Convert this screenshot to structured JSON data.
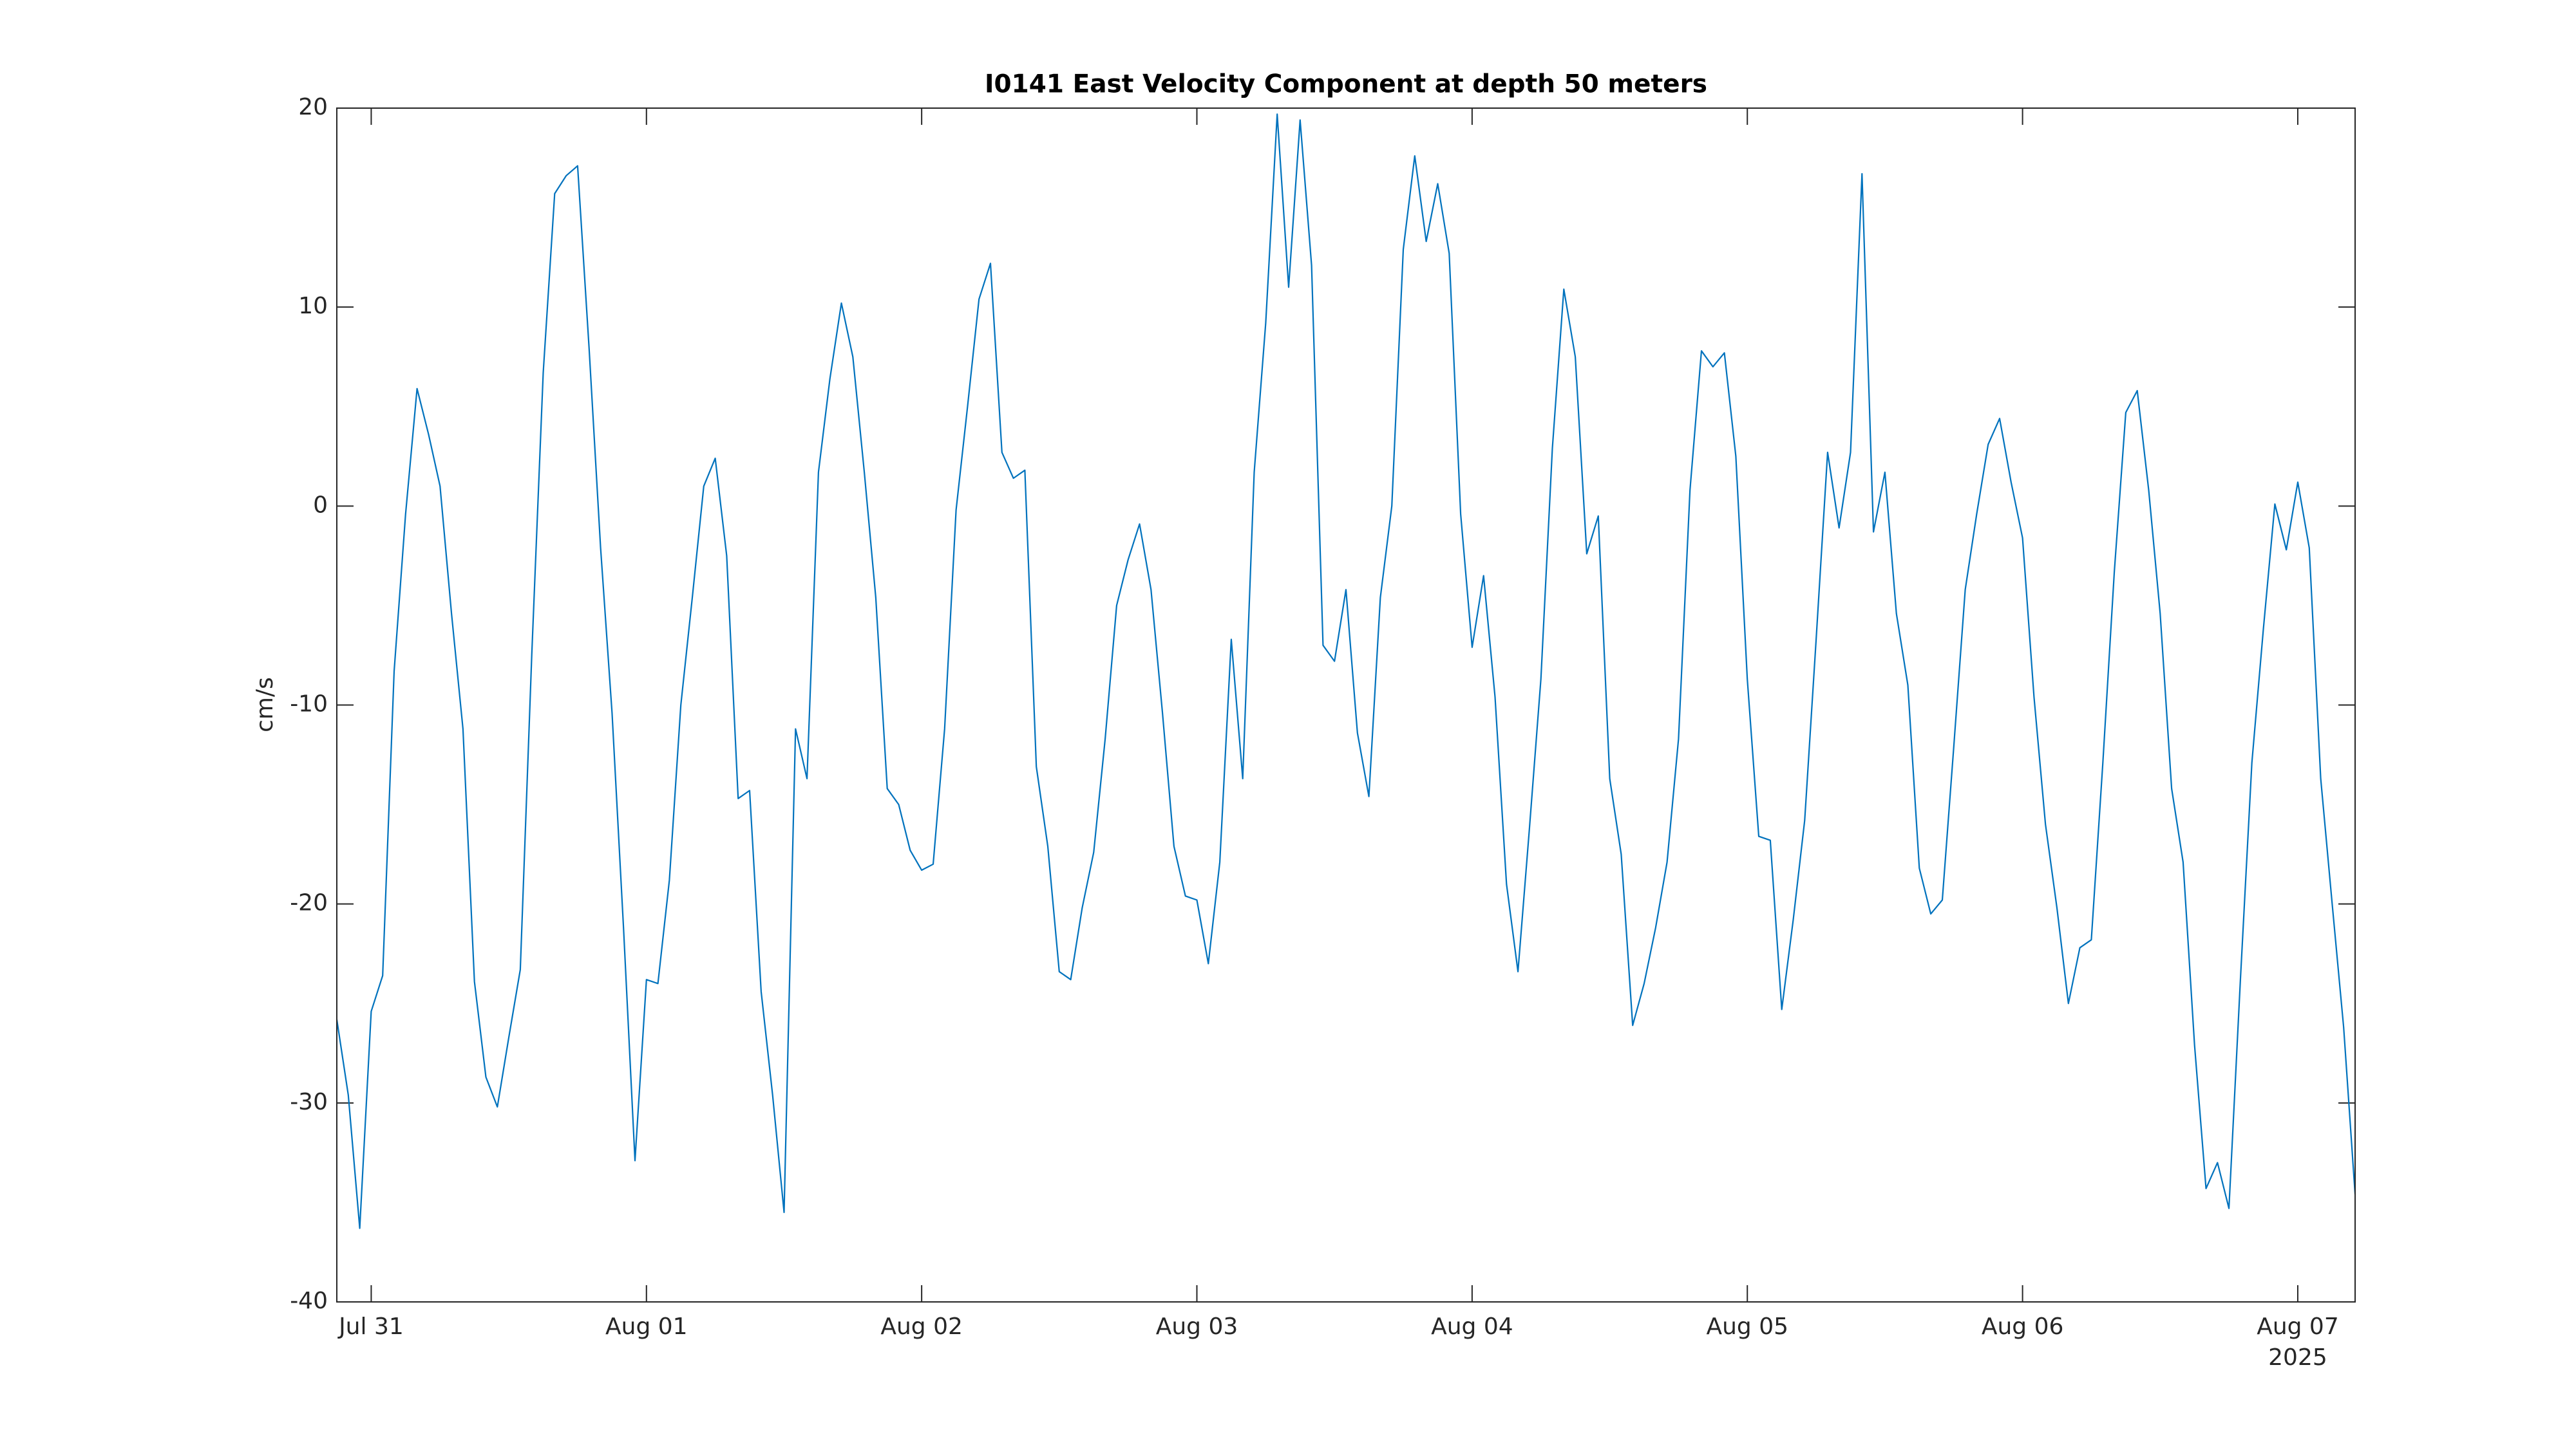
{
  "chart_data": {
    "type": "line",
    "title": "I0141 East Velocity Component at depth 50 meters",
    "ylabel": "cm/s",
    "x_secondary_label": "2025",
    "x": [
      "2025-07-30 21:00",
      "2025-07-30 22:00",
      "2025-07-30 23:00",
      "2025-07-31 00:00",
      "2025-07-31 01:00",
      "2025-07-31 02:00",
      "2025-07-31 03:00",
      "2025-07-31 04:00",
      "2025-07-31 05:00",
      "2025-07-31 06:00",
      "2025-07-31 07:00",
      "2025-07-31 08:00",
      "2025-07-31 09:00",
      "2025-07-31 10:00",
      "2025-07-31 11:00",
      "2025-07-31 12:00",
      "2025-07-31 13:00",
      "2025-07-31 14:00",
      "2025-07-31 15:00",
      "2025-07-31 16:00",
      "2025-07-31 17:00",
      "2025-07-31 18:00",
      "2025-07-31 19:00",
      "2025-07-31 20:00",
      "2025-07-31 21:00",
      "2025-07-31 22:00",
      "2025-07-31 23:00",
      "2025-08-01 00:00",
      "2025-08-01 01:00",
      "2025-08-01 02:00",
      "2025-08-01 03:00",
      "2025-08-01 04:00",
      "2025-08-01 05:00",
      "2025-08-01 06:00",
      "2025-08-01 07:00",
      "2025-08-01 08:00",
      "2025-08-01 09:00",
      "2025-08-01 10:00",
      "2025-08-01 11:00",
      "2025-08-01 12:00",
      "2025-08-01 13:00",
      "2025-08-01 14:00",
      "2025-08-01 15:00",
      "2025-08-01 16:00",
      "2025-08-01 17:00",
      "2025-08-01 18:00",
      "2025-08-01 19:00",
      "2025-08-01 20:00",
      "2025-08-01 21:00",
      "2025-08-01 22:00",
      "2025-08-01 23:00",
      "2025-08-02 00:00",
      "2025-08-02 01:00",
      "2025-08-02 02:00",
      "2025-08-02 03:00",
      "2025-08-02 04:00",
      "2025-08-02 05:00",
      "2025-08-02 06:00",
      "2025-08-02 07:00",
      "2025-08-02 08:00",
      "2025-08-02 09:00",
      "2025-08-02 10:00",
      "2025-08-02 11:00",
      "2025-08-02 12:00",
      "2025-08-02 13:00",
      "2025-08-02 14:00",
      "2025-08-02 15:00",
      "2025-08-02 16:00",
      "2025-08-02 17:00",
      "2025-08-02 18:00",
      "2025-08-02 19:00",
      "2025-08-02 20:00",
      "2025-08-02 21:00",
      "2025-08-02 22:00",
      "2025-08-02 23:00",
      "2025-08-03 00:00",
      "2025-08-03 01:00",
      "2025-08-03 02:00",
      "2025-08-03 03:00",
      "2025-08-03 04:00",
      "2025-08-03 05:00",
      "2025-08-03 06:00",
      "2025-08-03 07:00",
      "2025-08-03 08:00",
      "2025-08-03 09:00",
      "2025-08-03 10:00",
      "2025-08-03 11:00",
      "2025-08-03 12:00",
      "2025-08-03 13:00",
      "2025-08-03 14:00",
      "2025-08-03 15:00",
      "2025-08-03 16:00",
      "2025-08-03 17:00",
      "2025-08-03 18:00",
      "2025-08-03 19:00",
      "2025-08-03 20:00",
      "2025-08-03 21:00",
      "2025-08-03 22:00",
      "2025-08-03 23:00",
      "2025-08-04 00:00",
      "2025-08-04 01:00",
      "2025-08-04 02:00",
      "2025-08-04 03:00",
      "2025-08-04 04:00",
      "2025-08-04 05:00",
      "2025-08-04 06:00",
      "2025-08-04 07:00",
      "2025-08-04 08:00",
      "2025-08-04 09:00",
      "2025-08-04 10:00",
      "2025-08-04 11:00",
      "2025-08-04 12:00",
      "2025-08-04 13:00",
      "2025-08-04 14:00",
      "2025-08-04 15:00",
      "2025-08-04 16:00",
      "2025-08-04 17:00",
      "2025-08-04 18:00",
      "2025-08-04 19:00",
      "2025-08-04 20:00",
      "2025-08-04 21:00",
      "2025-08-04 22:00",
      "2025-08-04 23:00",
      "2025-08-05 00:00",
      "2025-08-05 01:00",
      "2025-08-05 02:00",
      "2025-08-05 03:00",
      "2025-08-05 04:00",
      "2025-08-05 05:00",
      "2025-08-05 06:00",
      "2025-08-05 07:00",
      "2025-08-05 08:00",
      "2025-08-05 09:00",
      "2025-08-05 10:00",
      "2025-08-05 11:00",
      "2025-08-05 12:00",
      "2025-08-05 13:00",
      "2025-08-05 14:00",
      "2025-08-05 15:00",
      "2025-08-05 16:00",
      "2025-08-05 17:00",
      "2025-08-05 18:00",
      "2025-08-05 19:00",
      "2025-08-05 20:00",
      "2025-08-05 21:00",
      "2025-08-05 22:00",
      "2025-08-05 23:00",
      "2025-08-06 00:00",
      "2025-08-06 01:00",
      "2025-08-06 02:00",
      "2025-08-06 03:00",
      "2025-08-06 04:00",
      "2025-08-06 05:00",
      "2025-08-06 06:00",
      "2025-08-06 07:00",
      "2025-08-06 08:00",
      "2025-08-06 09:00",
      "2025-08-06 10:00",
      "2025-08-06 11:00",
      "2025-08-06 12:00",
      "2025-08-06 13:00",
      "2025-08-06 14:00",
      "2025-08-06 15:00",
      "2025-08-06 16:00",
      "2025-08-06 17:00",
      "2025-08-06 18:00",
      "2025-08-06 19:00",
      "2025-08-06 20:00",
      "2025-08-06 21:00",
      "2025-08-06 22:00",
      "2025-08-06 23:00",
      "2025-08-07 00:00",
      "2025-08-07 01:00",
      "2025-08-07 02:00",
      "2025-08-07 03:00",
      "2025-08-07 04:00",
      "2025-08-07 05:00"
    ],
    "series": [
      {
        "name": "East Velocity",
        "color": "#0072bd",
        "values": [
          -25.8,
          -29.6,
          -36.3,
          -25.4,
          -23.6,
          -8.3,
          -0.4,
          5.9,
          3.6,
          1.0,
          -5.4,
          -11.2,
          -23.9,
          -28.7,
          -30.2,
          -26.7,
          -23.3,
          -7.5,
          6.7,
          15.7,
          16.6,
          17.1,
          7.9,
          -2.1,
          -10.4,
          -21.2,
          -32.9,
          -23.8,
          -24.0,
          -18.8,
          -10.0,
          -4.6,
          1.0,
          2.4,
          -2.5,
          -14.7,
          -14.3,
          -24.4,
          -29.6,
          -35.5,
          -11.2,
          -13.7,
          1.7,
          6.4,
          10.2,
          7.5,
          1.7,
          -4.6,
          -14.2,
          -15.0,
          -17.3,
          -18.3,
          -18.0,
          -11.2,
          -0.2,
          5.0,
          10.4,
          12.2,
          2.7,
          1.4,
          1.8,
          -13.1,
          -17.1,
          -23.4,
          -23.8,
          -20.2,
          -17.4,
          -11.7,
          -5.0,
          -2.7,
          -0.9,
          -4.2,
          -10.4,
          -17.1,
          -19.6,
          -19.8,
          -23.0,
          -17.9,
          -6.7,
          -13.7,
          1.7,
          9.2,
          19.7,
          11.0,
          19.4,
          12.1,
          -7.0,
          -7.8,
          -4.2,
          -11.4,
          -14.6,
          -4.6,
          0.0,
          12.9,
          17.6,
          13.3,
          16.2,
          12.7,
          -0.4,
          -7.1,
          -3.5,
          -9.6,
          -19.0,
          -23.4,
          -16.2,
          -8.7,
          2.9,
          10.9,
          7.5,
          -2.4,
          -0.5,
          -13.7,
          -17.5,
          -26.1,
          -24.0,
          -21.2,
          -17.9,
          -11.7,
          0.8,
          7.8,
          7.0,
          7.7,
          2.5,
          -8.7,
          -16.6,
          -16.8,
          -25.3,
          -20.8,
          -15.8,
          -6.7,
          2.7,
          -1.1,
          2.7,
          16.7,
          -1.3,
          1.7,
          -5.4,
          -9.0,
          -18.2,
          -20.5,
          -19.8,
          -12.1,
          -4.2,
          -0.4,
          3.1,
          4.4,
          1.2,
          -1.6,
          -9.6,
          -16.0,
          -20.2,
          -25.0,
          -22.2,
          -21.8,
          -12.9,
          -3.3,
          4.7,
          5.8,
          0.8,
          -5.4,
          -14.2,
          -17.9,
          -27.1,
          -34.3,
          -33.0,
          -35.3,
          -23.8,
          -12.9,
          -6.2,
          0.1,
          -2.2,
          1.2,
          -2.1,
          -13.7,
          -20.0,
          -26.2,
          -34.6
        ]
      }
    ],
    "xlim": [
      "2025-07-30 21:00",
      "2025-08-07 05:00"
    ],
    "xticks": [
      {
        "value": "2025-07-31 00:00",
        "label": "Jul 31"
      },
      {
        "value": "2025-08-01 00:00",
        "label": "Aug 01"
      },
      {
        "value": "2025-08-02 00:00",
        "label": "Aug 02"
      },
      {
        "value": "2025-08-03 00:00",
        "label": "Aug 03"
      },
      {
        "value": "2025-08-04 00:00",
        "label": "Aug 04"
      },
      {
        "value": "2025-08-05 00:00",
        "label": "Aug 05"
      },
      {
        "value": "2025-08-06 00:00",
        "label": "Aug 06"
      },
      {
        "value": "2025-08-07 00:00",
        "label": "Aug 07"
      }
    ],
    "ylim": [
      -40,
      20
    ],
    "yticks": [
      -40,
      -30,
      -20,
      -10,
      0,
      10,
      20
    ],
    "grid": false
  }
}
